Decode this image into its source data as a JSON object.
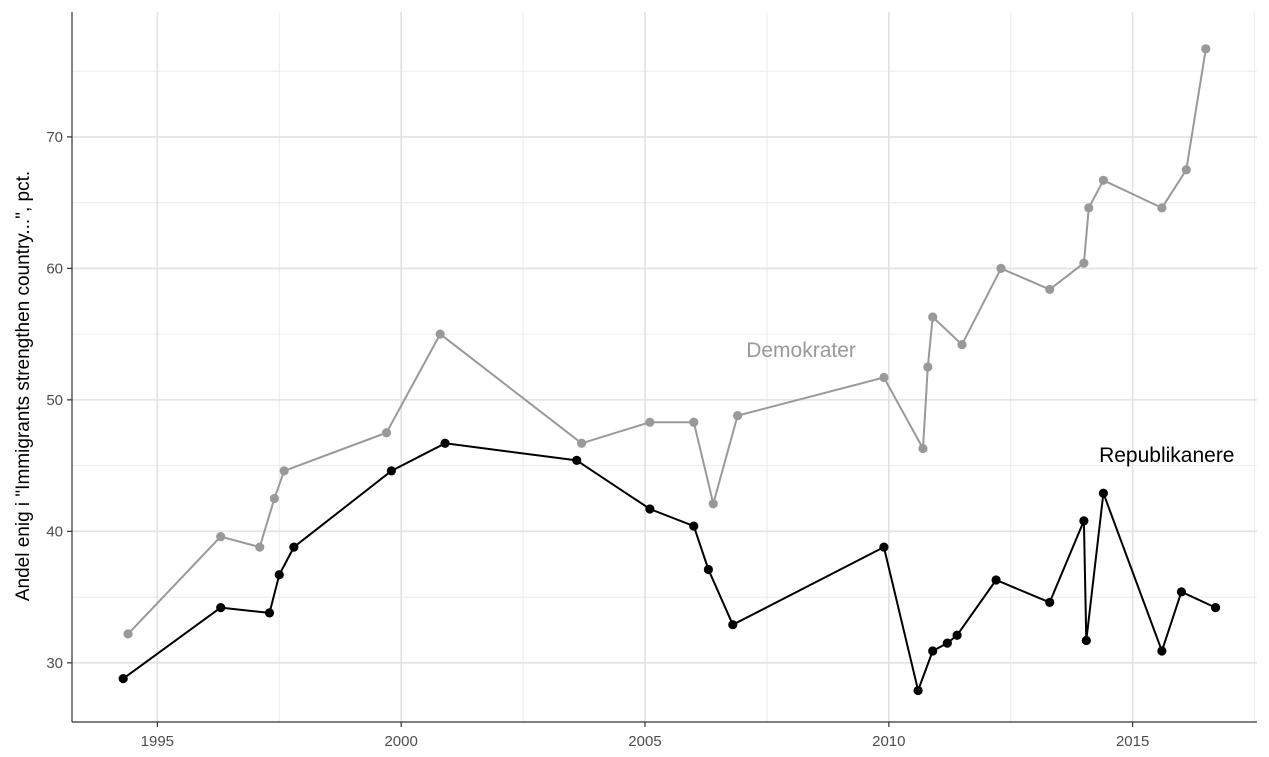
{
  "chart_data": {
    "type": "line",
    "ylabel": "Andel enig i \"Immigrants strengthen country...\", pct.",
    "xlabel": "",
    "xlim": [
      1993.25,
      2017.55
    ],
    "ylim": [
      25.5,
      79.5
    ],
    "x_ticks": [
      1995,
      2000,
      2005,
      2010,
      2015
    ],
    "y_ticks": [
      30,
      40,
      50,
      60,
      70
    ],
    "grid": true,
    "legend": "none",
    "series": [
      {
        "name": "Demokrater",
        "color": "#999999",
        "label_at": [
          2008.2,
          53.8
        ],
        "x": [
          1994.4,
          1996.3,
          1997.1,
          1997.4,
          1997.6,
          1999.7,
          2000.8,
          2003.7,
          2005.1,
          2006.0,
          2006.4,
          2006.9,
          2009.9,
          2010.7,
          2010.8,
          2010.9,
          2011.5,
          2012.3,
          2013.3,
          2014.0,
          2014.1,
          2014.4,
          2015.6,
          2016.1,
          2016.5
        ],
        "y": [
          32.2,
          39.6,
          38.8,
          42.5,
          44.6,
          47.5,
          55.0,
          46.7,
          48.3,
          48.3,
          42.1,
          48.8,
          51.7,
          46.3,
          52.5,
          56.3,
          54.2,
          60.0,
          58.4,
          60.4,
          64.6,
          66.7,
          64.6,
          67.5,
          76.7
        ]
      },
      {
        "name": "Republikanere",
        "color": "#000000",
        "label_at": [
          2015.7,
          45.8
        ],
        "x": [
          1994.3,
          1996.3,
          1997.3,
          1997.5,
          1997.8,
          1999.8,
          2000.9,
          2003.6,
          2005.1,
          2006.0,
          2006.3,
          2006.8,
          2009.9,
          2010.6,
          2010.9,
          2011.2,
          2011.4,
          2012.2,
          2013.3,
          2014.0,
          2014.05,
          2014.4,
          2015.6,
          2016.0,
          2016.7
        ],
        "y": [
          28.8,
          34.2,
          33.8,
          36.7,
          38.8,
          44.6,
          46.7,
          45.4,
          41.7,
          40.4,
          37.1,
          32.9,
          38.8,
          27.9,
          30.9,
          31.5,
          32.1,
          36.3,
          34.6,
          40.8,
          31.7,
          42.9,
          30.9,
          35.4,
          34.2
        ]
      }
    ]
  }
}
